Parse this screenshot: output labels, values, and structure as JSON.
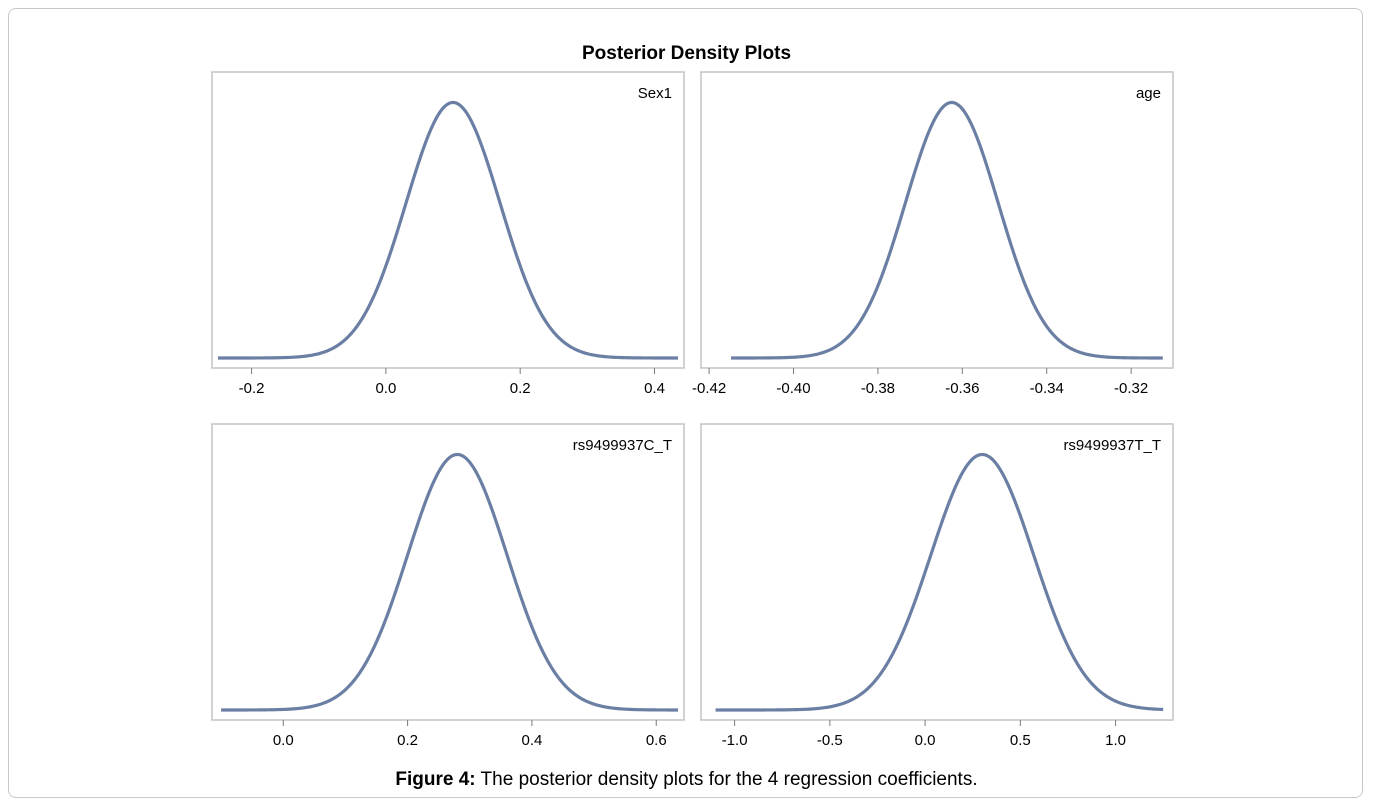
{
  "figure": {
    "title": "Posterior Density Plots",
    "caption_label": "Figure 4:",
    "caption_text": " The posterior density plots for the 4 regression coefficients."
  },
  "colors": {
    "curve": "#6a7fa3"
  },
  "chart_data": [
    {
      "type": "line",
      "panel": "top-left",
      "label": "Sex1",
      "xlim": [
        -0.25,
        0.435
      ],
      "ylim": [
        0,
        1.08
      ],
      "xticks": [
        "-0.2",
        "0.0",
        "0.2",
        "0.4"
      ],
      "density": {
        "mean": 0.1,
        "sd": 0.07
      },
      "x": [
        -0.25,
        -0.2,
        -0.15,
        -0.1,
        -0.08,
        -0.05,
        -0.02,
        0.0,
        0.02,
        0.04,
        0.06,
        0.08,
        0.1,
        0.12,
        0.14,
        0.16,
        0.18,
        0.2,
        0.22,
        0.25,
        0.3,
        0.35,
        0.435
      ],
      "y": [
        0.0,
        0.001,
        0.01,
        0.05,
        0.1,
        0.2,
        0.36,
        0.45,
        0.62,
        0.76,
        0.89,
        0.97,
        1.0,
        0.96,
        0.86,
        0.72,
        0.56,
        0.4,
        0.26,
        0.11,
        0.03,
        0.004,
        0.0
      ]
    },
    {
      "type": "line",
      "panel": "top-right",
      "label": "age",
      "xlim": [
        -0.4205,
        -0.3115
      ],
      "ylim": [
        0,
        1.08
      ],
      "xticks": [
        "-0.42",
        "-0.40",
        "-0.38",
        "-0.36",
        "-0.34",
        "-0.32"
      ],
      "density": {
        "mean": -0.3625,
        "sd": 0.011
      },
      "x": [
        -0.4148,
        -0.41,
        -0.4,
        -0.395,
        -0.39,
        -0.385,
        -0.38,
        -0.375,
        -0.37,
        -0.365,
        -0.3625,
        -0.36,
        -0.355,
        -0.35,
        -0.345,
        -0.34,
        -0.335,
        -0.33,
        -0.32,
        -0.3125
      ],
      "y": [
        0.0,
        0.002,
        0.03,
        0.06,
        0.12,
        0.24,
        0.42,
        0.62,
        0.81,
        0.96,
        1.0,
        0.98,
        0.89,
        0.7,
        0.5,
        0.33,
        0.17,
        0.07,
        0.01,
        0.0
      ]
    },
    {
      "type": "line",
      "panel": "bottom-left",
      "label": "rs9499937C_T",
      "xlim": [
        -0.105,
        0.635
      ],
      "ylim": [
        0,
        1.08
      ],
      "xticks": [
        "0.0",
        "0.2",
        "0.4",
        "0.6"
      ],
      "density": {
        "mean": 0.28,
        "sd": 0.08
      },
      "x": [
        -0.1,
        0.0,
        0.05,
        0.1,
        0.15,
        0.2,
        0.22,
        0.25,
        0.28,
        0.3,
        0.32,
        0.35,
        0.4,
        0.45,
        0.5,
        0.55,
        0.635
      ],
      "y": [
        0.0,
        0.003,
        0.02,
        0.08,
        0.22,
        0.55,
        0.71,
        0.92,
        1.0,
        0.97,
        0.9,
        0.76,
        0.45,
        0.15,
        0.04,
        0.008,
        0.0
      ]
    },
    {
      "type": "line",
      "panel": "bottom-right",
      "label": "rs9499937T_T",
      "xlim": [
        -1.145,
        1.27
      ],
      "ylim": [
        0,
        1.08
      ],
      "xticks": [
        "-1.0",
        "-0.5",
        "0.0",
        "0.5",
        "1.0"
      ],
      "density": {
        "mean": 0.3,
        "sd": 0.27
      },
      "x": [
        -1.1,
        -0.8,
        -0.6,
        -0.5,
        -0.4,
        -0.3,
        -0.2,
        -0.1,
        0.0,
        0.1,
        0.2,
        0.3,
        0.4,
        0.5,
        0.6,
        0.7,
        0.8,
        0.9,
        1.0,
        1.1,
        1.25
      ],
      "y": [
        0.0,
        0.005,
        0.03,
        0.06,
        0.1,
        0.18,
        0.27,
        0.43,
        0.63,
        0.8,
        0.95,
        1.0,
        0.94,
        0.8,
        0.6,
        0.36,
        0.18,
        0.07,
        0.02,
        0.004,
        0.0
      ]
    }
  ]
}
